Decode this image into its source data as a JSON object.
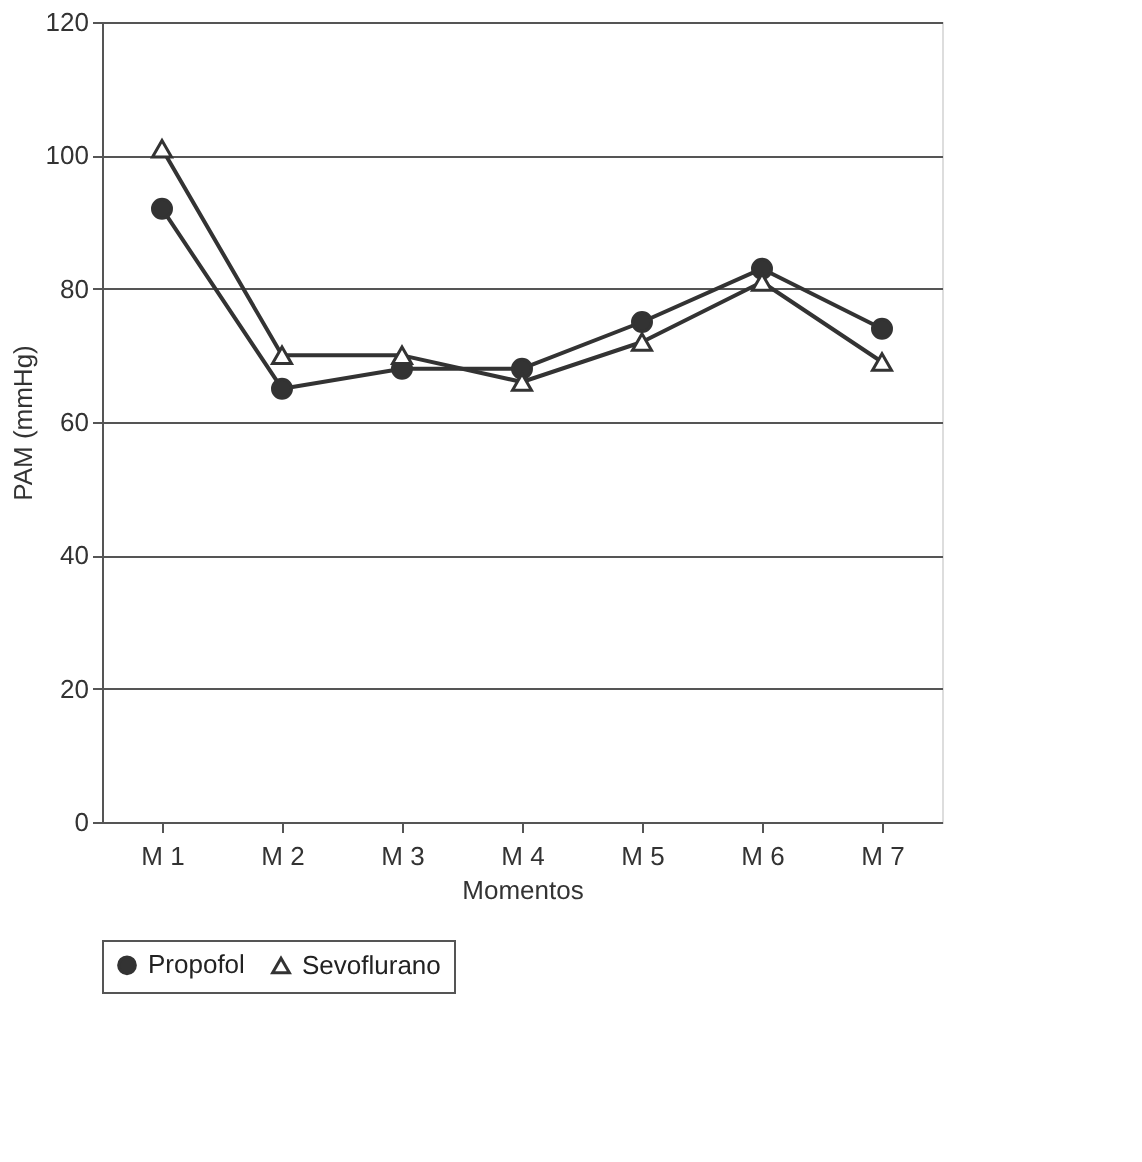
{
  "chart_data": {
    "type": "line",
    "xlabel": "Momentos",
    "ylabel": "PAM (mmHg)",
    "categories": [
      "M 1",
      "M 2",
      "M 3",
      "M 4",
      "M 5",
      "M 6",
      "M 7"
    ],
    "series": [
      {
        "name": "Propofol",
        "color": "#333333",
        "marker": "circle",
        "values": [
          92,
          65,
          68,
          68,
          75,
          83,
          74
        ]
      },
      {
        "name": "Sevoflurano",
        "color": "#333333",
        "marker": "triangle",
        "values": [
          101,
          70,
          70,
          66,
          72,
          81,
          69
        ]
      }
    ],
    "ylim": [
      0,
      120
    ],
    "yticks": [
      0,
      20,
      40,
      60,
      80,
      100,
      120
    ],
    "grid": "y",
    "legend": "bottom",
    "line_style": "solid"
  }
}
